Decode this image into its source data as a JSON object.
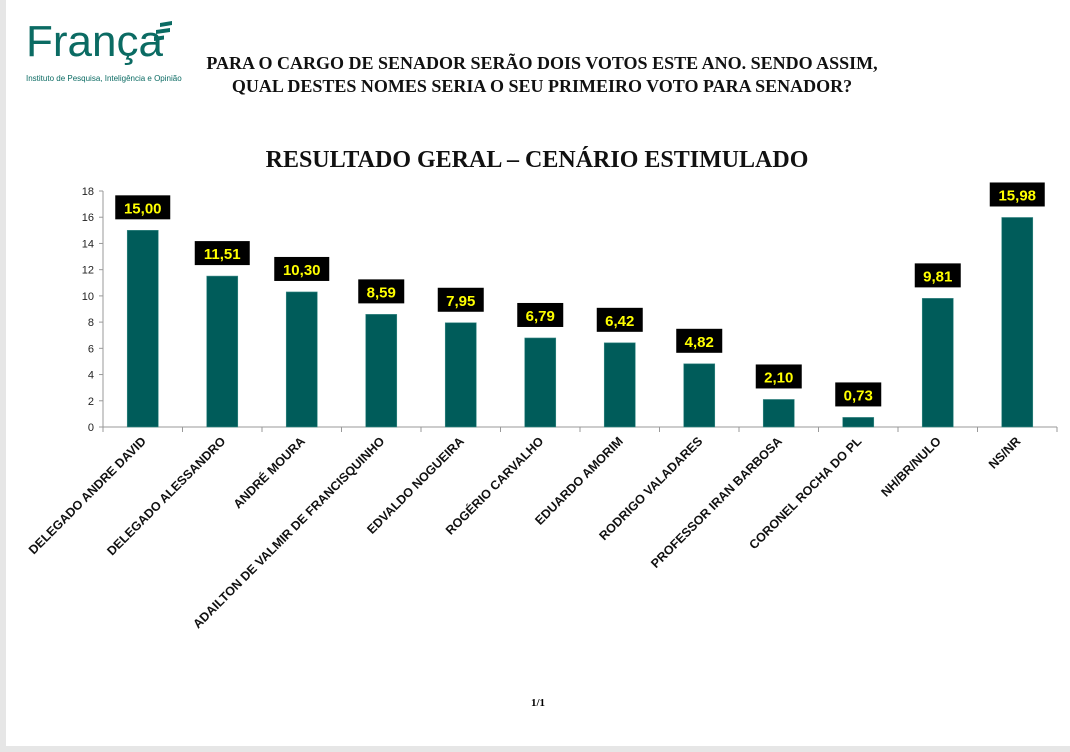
{
  "header": {
    "logo_name": "França",
    "logo_tagline": "Instituto de Pesquisa, Inteligência e Opinião",
    "question_line1": "PARA O CARGO DE SENADOR SERÃO DOIS VOTOS ESTE ANO. SENDO ASSIM,",
    "question_line2": "QUAL DESTES NOMES SERIA O SEU PRIMEIRO VOTO PARA SENADOR?"
  },
  "footer": {
    "page": "1/1"
  },
  "colors": {
    "bar": "#005c5a",
    "label_bg": "#000000",
    "label_text": "#ffff00",
    "brand": "#0b6b63"
  },
  "chart_data": {
    "type": "bar",
    "title": "RESULTADO GERAL – CENÁRIO ESTIMULADO",
    "xlabel": "",
    "ylabel": "",
    "ylim": [
      0,
      18
    ],
    "yticks": [
      0,
      2,
      4,
      6,
      8,
      10,
      12,
      14,
      16,
      18
    ],
    "grid": false,
    "categories": [
      "DELEGADO ANDRE DAVID",
      "DELEGADO ALESSANDRO",
      "ANDRÉ MOURA",
      "ADAILTON DE VALMIR DE FRANCISQUINHO",
      "EDVALDO NOGUEIRA",
      "ROGÉRIO CARVALHO",
      "EDUARDO AMORIM",
      "RODRIGO VALADARES",
      "PROFESSOR IRAN BARBOSA",
      "CORONEL ROCHA DO PL",
      "NH/BR/NULO",
      "NS/NR"
    ],
    "values": [
      15.0,
      11.51,
      10.3,
      8.59,
      7.95,
      6.79,
      6.42,
      4.82,
      2.1,
      0.73,
      9.81,
      15.98
    ],
    "data_labels": [
      "15,00",
      "11,51",
      "10,30",
      "8,59",
      "7,95",
      "6,79",
      "6,42",
      "4,82",
      "2,10",
      "0,73",
      "9,81",
      "15,98"
    ]
  }
}
